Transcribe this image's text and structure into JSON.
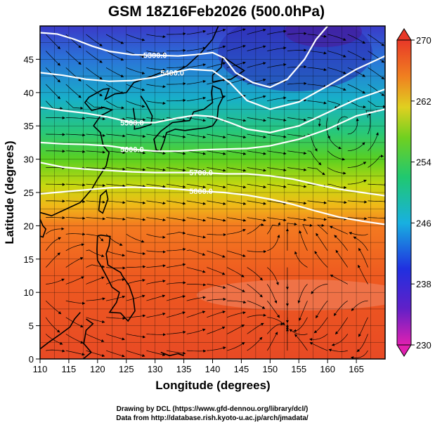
{
  "title": "GSM 18Z16Feb2026 (500.0hPa)",
  "x_axis": {
    "label": "Longitude (degrees)",
    "range": [
      110,
      170
    ],
    "ticks": [
      "110",
      "115",
      "120",
      "125",
      "130",
      "135",
      "140",
      "145",
      "150",
      "155",
      "160",
      "165"
    ]
  },
  "y_axis": {
    "label": "Latitude  (degrees)",
    "range": [
      0,
      50
    ],
    "ticks": [
      "0",
      "5",
      "10",
      "15",
      "20",
      "25",
      "30",
      "35",
      "40",
      "45"
    ]
  },
  "colorbar": {
    "range": [
      230,
      270
    ],
    "ticks": [
      "230",
      "238",
      "246",
      "254",
      "262",
      "270"
    ]
  },
  "contour_labels": [
    "5300.0",
    "5400.0",
    "5500.0",
    "5600.0",
    "5700.0",
    "5800.0"
  ],
  "credits": {
    "line1": "Drawing by DCL (https://www.gfd-dennou.org/library/dcl/)",
    "line2": "Data from http://database.rish.kyoto-u.ac.jp/arch/jmadata/"
  }
}
